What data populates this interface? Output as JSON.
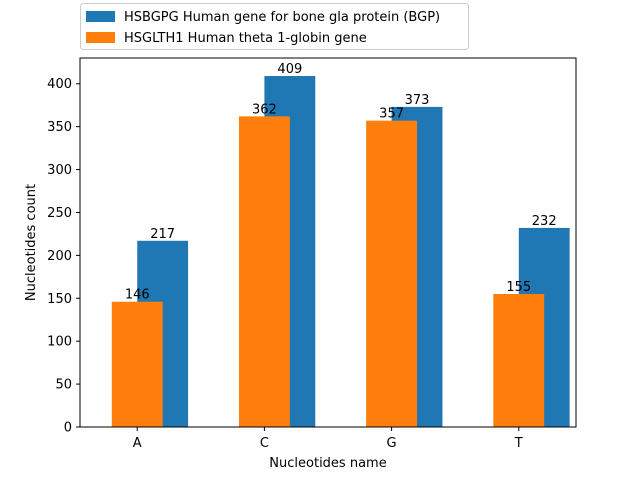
{
  "chart_data": {
    "type": "bar",
    "title": "",
    "xlabel": "Nucleotides name",
    "ylabel": "Nucleotides count",
    "categories": [
      "A",
      "C",
      "G",
      "T"
    ],
    "ylim": [
      0,
      430
    ],
    "yticks": [
      0,
      50,
      100,
      150,
      200,
      250,
      300,
      350,
      400
    ],
    "grid": false,
    "legend_position": "top-left, above plot",
    "series": [
      {
        "name": "HSBGPG Human gene for bone gla protein (BGP)",
        "color": "#1f77b4",
        "values": [
          217,
          409,
          373,
          232
        ]
      },
      {
        "name": "HSGLTH1 Human theta 1-globin gene",
        "color": "#ff7f0e",
        "values": [
          146,
          362,
          357,
          155
        ]
      }
    ]
  }
}
